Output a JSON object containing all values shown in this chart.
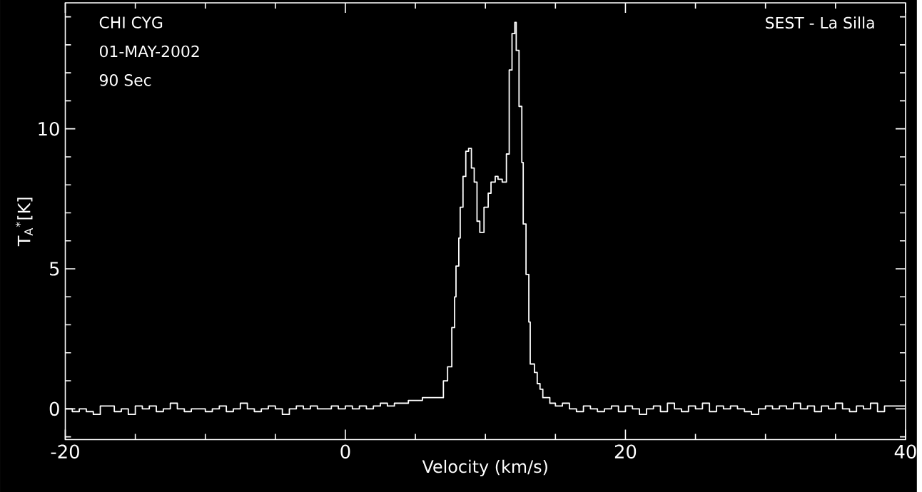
{
  "chart_data": {
    "type": "step",
    "xlabel": "Velocity (km/s)",
    "ylabel": "T$_{A}$$^{*}$[K]",
    "annotations": [
      "CHI CYG",
      "01-MAY-2002",
      "90 Sec",
      "SEST - La Silla"
    ],
    "xlim": [
      -20,
      40
    ],
    "ylim": [
      -1.1,
      14.5
    ],
    "xticks": [
      -20,
      {
        "value": -15,
        "label": null
      },
      {
        "value": -10,
        "label": null
      },
      {
        "value": -5,
        "label": null
      },
      0,
      {
        "value": 5,
        "label": null
      },
      {
        "value": 10,
        "label": null
      },
      {
        "value": 15,
        "label": null
      },
      20,
      {
        "value": 25,
        "label": null
      },
      {
        "value": 30,
        "label": null
      },
      {
        "value": 35,
        "label": null
      },
      40
    ],
    "yticks": [
      {
        "value": -1,
        "label": null
      },
      0,
      {
        "value": 1,
        "label": null
      },
      {
        "value": 2,
        "label": null
      },
      {
        "value": 3,
        "label": null
      },
      {
        "value": 4,
        "label": null
      },
      5,
      {
        "value": 6,
        "label": null
      },
      {
        "value": 7,
        "label": null
      },
      {
        "value": 8,
        "label": null
      },
      {
        "value": 9,
        "label": null
      },
      10,
      {
        "value": 11,
        "label": null
      },
      {
        "value": 12,
        "label": null
      },
      {
        "value": 13,
        "label": null
      },
      {
        "value": 14,
        "label": null
      }
    ],
    "grid": false,
    "marker": "none",
    "line_style": "solid",
    "series": [
      {
        "color": "#ffffff",
        "x": [
          -20,
          -19.5,
          -19,
          -18.5,
          -18,
          -17.5,
          -17,
          -16.5,
          -16,
          -15.5,
          -15,
          -14.5,
          -14,
          -13.5,
          -13,
          -12.5,
          -12,
          -11.5,
          -11,
          -10.5,
          -10,
          -9.5,
          -9,
          -8.5,
          -8,
          -7.5,
          -7,
          -6.5,
          -6,
          -5.5,
          -5,
          -4.5,
          -4,
          -3.5,
          -3,
          -2.5,
          -2,
          -1.5,
          -1,
          -0.5,
          0,
          0.5,
          1,
          1.5,
          2,
          2.5,
          3,
          3.5,
          4,
          4.5,
          5,
          5.5,
          6.3,
          7.0,
          7.3,
          7.6,
          7.8,
          7.9,
          8.1,
          8.2,
          8.4,
          8.6,
          8.8,
          9.0,
          9.2,
          9.4,
          9.6,
          9.9,
          10.2,
          10.4,
          10.7,
          10.9,
          11.2,
          11.5,
          11.7,
          11.9,
          12.1,
          12.2,
          12.4,
          12.6,
          12.7,
          12.9,
          13.1,
          13.2,
          13.5,
          13.7,
          13.9,
          14.1,
          14.6,
          15,
          15.5,
          16,
          16.5,
          17,
          17.5,
          18,
          18.5,
          19,
          19.5,
          20,
          20.5,
          21,
          21.5,
          22,
          22.5,
          23,
          23.5,
          24,
          24.5,
          25,
          25.5,
          26,
          26.5,
          27,
          27.5,
          28,
          28.5,
          29,
          29.5,
          30,
          30.5,
          31,
          31.5,
          32,
          32.5,
          33,
          33.5,
          34,
          34.5,
          35,
          35.5,
          36,
          36.5,
          37,
          37.5,
          38,
          38.5,
          39,
          39.5,
          40
        ],
        "values": [
          0,
          -0.1,
          0,
          -0.1,
          -0.2,
          0.1,
          0.1,
          -0.1,
          0,
          -0.2,
          0.1,
          0,
          0.1,
          -0.1,
          0,
          0.2,
          0,
          -0.1,
          0,
          0,
          -0.1,
          0,
          0.1,
          -0.1,
          0,
          0.2,
          0,
          -0.1,
          0,
          0.1,
          0,
          -0.2,
          0,
          0.1,
          0,
          0.1,
          0,
          0,
          0.1,
          0,
          0.1,
          0,
          0.1,
          0,
          0.1,
          0.2,
          0.1,
          0.2,
          0.2,
          0.3,
          0.3,
          0.4,
          0.4,
          1.0,
          1.5,
          2.9,
          4.0,
          5.1,
          6.1,
          7.2,
          8.3,
          9.2,
          9.3,
          8.6,
          8.1,
          6.7,
          6.3,
          7.2,
          7.7,
          8.1,
          8.3,
          8.2,
          8.1,
          9.1,
          12.1,
          13.4,
          13.8,
          12.8,
          10.8,
          8.8,
          6.6,
          4.8,
          3.1,
          1.6,
          1.3,
          0.9,
          0.7,
          0.4,
          0.2,
          0.1,
          0.2,
          0,
          -0.1,
          0.1,
          0,
          -0.1,
          0,
          0.1,
          -0.1,
          0.1,
          0,
          -0.2,
          0,
          0.1,
          -0.1,
          0.2,
          0,
          -0.1,
          0.1,
          0,
          0.2,
          -0.1,
          0.1,
          0,
          0.1,
          0,
          -0.1,
          -0.2,
          0,
          0.1,
          0,
          0.1,
          0,
          0.2,
          0,
          0.1,
          -0.1,
          0.1,
          0,
          0.2,
          0,
          -0.1,
          0.1,
          0,
          0.2,
          -0.1,
          0.1,
          0.1,
          0.1,
          0.2
        ]
      }
    ]
  }
}
